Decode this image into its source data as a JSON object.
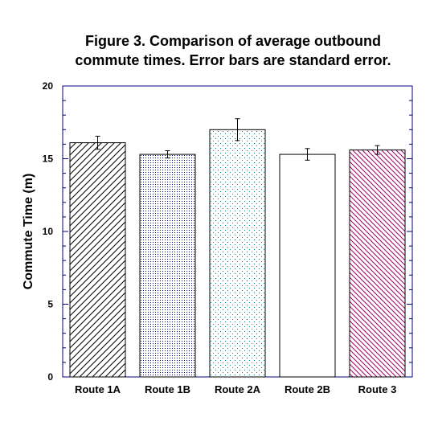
{
  "chart_data": {
    "type": "bar",
    "title_lines": [
      "Figure 3. Comparison of average outbound",
      "commute times. Error bars are standard error."
    ],
    "xlabel": "",
    "ylabel": "Commute Time (m)",
    "ylim": [
      0,
      20
    ],
    "yticks": [
      "0",
      "5",
      "10",
      "15",
      "20"
    ],
    "categories": [
      "Route 1A",
      "Route 1B",
      "Route 2A",
      "Route 2B",
      "Route 3"
    ],
    "values": [
      16.1,
      15.3,
      17.0,
      15.3,
      15.6
    ],
    "errors": [
      0.45,
      0.25,
      0.75,
      0.4,
      0.3
    ],
    "patterns": [
      "diagonal-up",
      "dots-dense",
      "dots-sparse",
      "none",
      "diagonal-down"
    ],
    "pattern_colors": [
      "#000000",
      "#000080",
      "#008080",
      "#000000",
      "#990066"
    ],
    "axis_color": "#000080",
    "grid": false,
    "legend": "none"
  }
}
